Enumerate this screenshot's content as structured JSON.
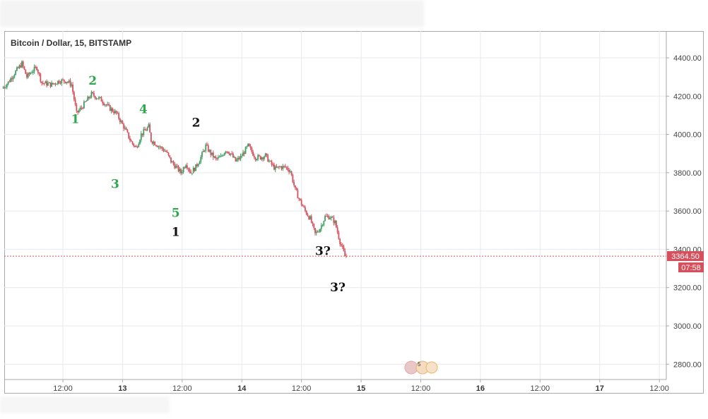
{
  "chart_data": {
    "type": "candlestick",
    "title": "Bitcoin / Dollar, 15, BITSTAMP",
    "y_ticks": [
      "4400.00",
      "4200.00",
      "4000.00",
      "3800.00",
      "3600.00",
      "3400.00",
      "3200.00",
      "3000.00",
      "2800.00"
    ],
    "y_tick_values": [
      4400,
      4200,
      4000,
      3800,
      3600,
      3400,
      3200,
      3000,
      2800
    ],
    "ylim": [
      2720,
      4540
    ],
    "x_ticks": [
      {
        "label": "12:00",
        "t": 12,
        "bold": false
      },
      {
        "label": "13",
        "t": 24,
        "bold": true
      },
      {
        "label": "12:00",
        "t": 36,
        "bold": false
      },
      {
        "label": "14",
        "t": 48,
        "bold": true
      },
      {
        "label": "12:00",
        "t": 60,
        "bold": false
      },
      {
        "label": "15",
        "t": 72,
        "bold": true
      },
      {
        "label": "12:00",
        "t": 84,
        "bold": false
      },
      {
        "label": "16",
        "t": 96,
        "bold": true
      },
      {
        "label": "12:00",
        "t": 108,
        "bold": false
      },
      {
        "label": "17",
        "t": 120,
        "bold": true
      },
      {
        "label": "12:00",
        "t": 132,
        "bold": false
      }
    ],
    "x_unit": "hours since 12 00:00",
    "xlim": [
      0.2,
      133.4
    ],
    "grid": true,
    "current_price": {
      "value": 3364.5,
      "label": "3364.50",
      "countdown": "07:58"
    },
    "price_path": [
      {
        "t": 0,
        "p": 4240
      },
      {
        "t": 1.2,
        "p": 4270
      },
      {
        "t": 2.5,
        "p": 4320
      },
      {
        "t": 4,
        "p": 4370
      },
      {
        "t": 5,
        "p": 4300
      },
      {
        "t": 6,
        "p": 4330
      },
      {
        "t": 7,
        "p": 4350
      },
      {
        "t": 8,
        "p": 4270
      },
      {
        "t": 10,
        "p": 4260
      },
      {
        "t": 11.5,
        "p": 4280
      },
      {
        "t": 13,
        "p": 4280
      },
      {
        "t": 14,
        "p": 4260
      },
      {
        "t": 15,
        "p": 4110
      },
      {
        "t": 16,
        "p": 4140
      },
      {
        "t": 18,
        "p": 4210
      },
      {
        "t": 20,
        "p": 4180
      },
      {
        "t": 21.5,
        "p": 4140
      },
      {
        "t": 23,
        "p": 4110
      },
      {
        "t": 24.5,
        "p": 4040
      },
      {
        "t": 26,
        "p": 3960
      },
      {
        "t": 27,
        "p": 3930
      },
      {
        "t": 28,
        "p": 4000
      },
      {
        "t": 29.5,
        "p": 4040
      },
      {
        "t": 30,
        "p": 3970
      },
      {
        "t": 31.5,
        "p": 3940
      },
      {
        "t": 33,
        "p": 3910
      },
      {
        "t": 34,
        "p": 3860
      },
      {
        "t": 35,
        "p": 3830
      },
      {
        "t": 36,
        "p": 3800
      },
      {
        "t": 37,
        "p": 3850
      },
      {
        "t": 38,
        "p": 3800
      },
      {
        "t": 39,
        "p": 3830
      },
      {
        "t": 40,
        "p": 3880
      },
      {
        "t": 41,
        "p": 3940
      },
      {
        "t": 42,
        "p": 3900
      },
      {
        "t": 43,
        "p": 3870
      },
      {
        "t": 44,
        "p": 3880
      },
      {
        "t": 45,
        "p": 3920
      },
      {
        "t": 46,
        "p": 3900
      },
      {
        "t": 47,
        "p": 3860
      },
      {
        "t": 48,
        "p": 3880
      },
      {
        "t": 49.5,
        "p": 3940
      },
      {
        "t": 51,
        "p": 3880
      },
      {
        "t": 52,
        "p": 3880
      },
      {
        "t": 53,
        "p": 3890
      },
      {
        "t": 54,
        "p": 3850
      },
      {
        "t": 55,
        "p": 3820
      },
      {
        "t": 56,
        "p": 3830
      },
      {
        "t": 57,
        "p": 3830
      },
      {
        "t": 58,
        "p": 3810
      },
      {
        "t": 59,
        "p": 3710
      },
      {
        "t": 60,
        "p": 3650
      },
      {
        "t": 61,
        "p": 3600
      },
      {
        "t": 62,
        "p": 3560
      },
      {
        "t": 63,
        "p": 3480
      },
      {
        "t": 64,
        "p": 3510
      },
      {
        "t": 65,
        "p": 3570
      },
      {
        "t": 66,
        "p": 3570
      },
      {
        "t": 67,
        "p": 3540
      },
      {
        "t": 68,
        "p": 3440
      },
      {
        "t": 69,
        "p": 3364.5
      }
    ],
    "annotations": [
      {
        "text": "1",
        "t": 14.5,
        "p": 4060,
        "color": "green"
      },
      {
        "text": "2",
        "t": 18,
        "p": 4260,
        "color": "green"
      },
      {
        "text": "3",
        "t": 22.5,
        "p": 3720,
        "color": "green"
      },
      {
        "text": "4",
        "t": 28.2,
        "p": 4110,
        "color": "green"
      },
      {
        "text": "5",
        "t": 34.7,
        "p": 3570,
        "color": "green"
      },
      {
        "text": "1",
        "t": 34.7,
        "p": 3470,
        "color": "black"
      },
      {
        "text": "2",
        "t": 38.8,
        "p": 4040,
        "color": "black"
      },
      {
        "text": "3?",
        "t": 64.3,
        "p": 3370,
        "color": "black"
      },
      {
        "text": "3?",
        "t": 67.3,
        "p": 3180,
        "color": "black"
      }
    ]
  }
}
